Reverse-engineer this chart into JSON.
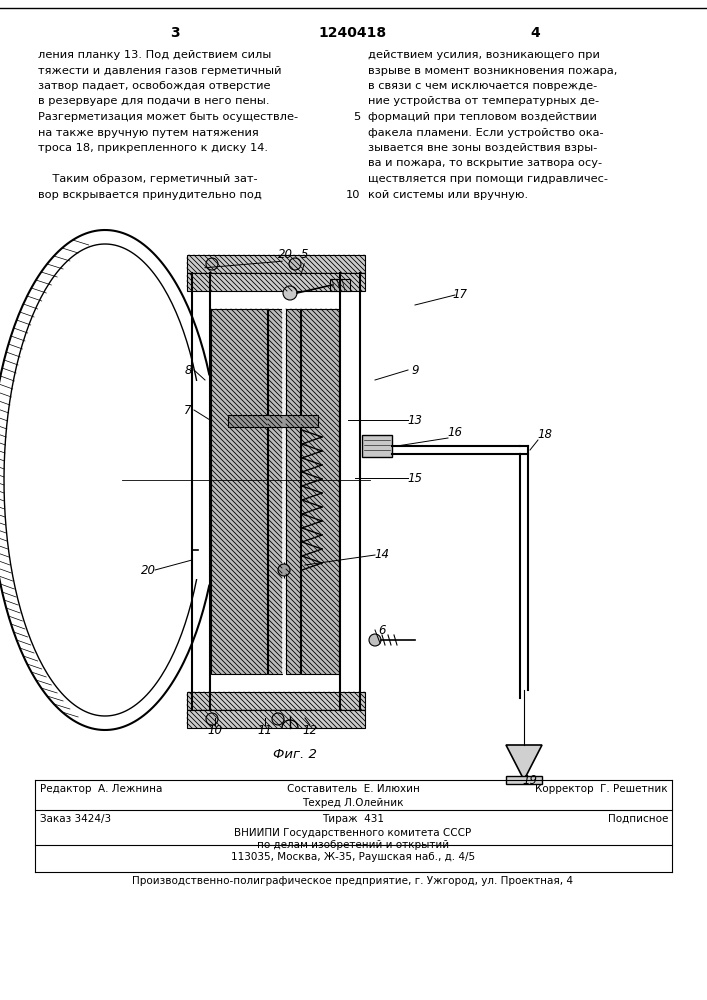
{
  "page_number_left": "3",
  "page_number_center": "1240418",
  "page_number_right": "4",
  "text_left_col": [
    "ления планку 13. Под действием силы",
    "тяжести и давления газов герметичный",
    "затвор падает, освобождая отверстие",
    "в резервуаре для подачи в него пены.",
    "Разгерметизация может быть осуществле-",
    "на также вручную путем натяжения",
    "троса 18, прикрепленного к диску 14.",
    "",
    "    Таким образом, герметичный зат-",
    "вор вскрывается принудительно под"
  ],
  "text_right_col": [
    "действием усилия, возникающего при",
    "взрыве в момент возникновения пожара,",
    "в связи с чем исключается поврежде-",
    "ние устройства от температурных де-",
    "формаций при тепловом воздействии",
    "факела пламени. Если устройство ока-",
    "зывается вне зоны воздействия взры-",
    "ва и пожара, то вскрытие затвора осу-",
    "ществляется при помощи гидравличес-",
    "кой системы или вручную."
  ],
  "fig_caption": "Фиг. 2",
  "footer_editor": "Редактор  А. Лежнина",
  "footer_composer": "Составитель  Е. Илюхин",
  "footer_corrector": "Корректор  Г. Решетник",
  "footer_techred": "Техред Л.Олейник",
  "footer_order": "Заказ 3424/3",
  "footer_tirage": "Тираж  431",
  "footer_podpisnoe": "Подписное",
  "footer_org_line1": "ВНИИПИ Государственного комитета СССР",
  "footer_org_line2": "по делам изобретений и открытий",
  "footer_org_line3": "113035, Москва, Ж-35, Раушская наб., д. 4/5",
  "footer_prod": "Производственно-полиграфическое предприятие, г. Ужгород, ул. Проектная, 4",
  "bg_color": "#ffffff",
  "text_color": "#000000",
  "line_color": "#000000"
}
